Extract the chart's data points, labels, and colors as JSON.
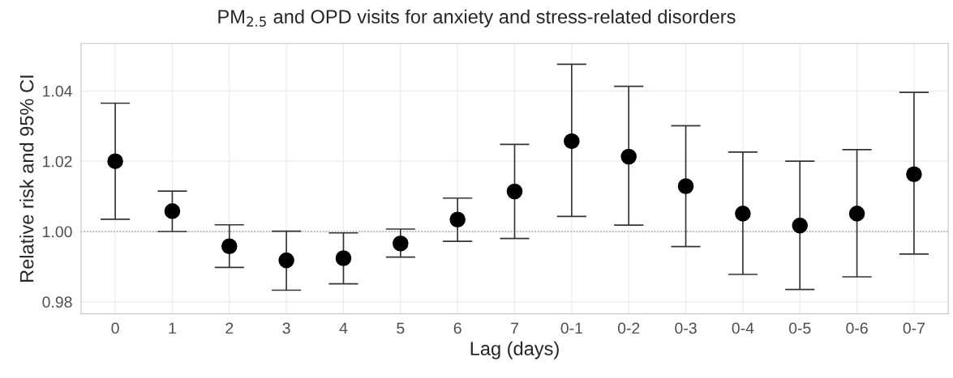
{
  "chart_data": {
    "type": "scatter",
    "title": "PM$_{2.5}$ and OPD visits for anxiety and stress-related disorders",
    "xlabel": "Lag (days)",
    "ylabel": "Relative risk and 95% CI",
    "categories": [
      "0",
      "1",
      "2",
      "3",
      "4",
      "5",
      "6",
      "7",
      "0-1",
      "0-2",
      "0-3",
      "0-4",
      "0-5",
      "0-6",
      "0-7"
    ],
    "series": [
      {
        "color": "#000000",
        "values": [
          1.02,
          1.0058,
          0.9958,
          0.9918,
          0.9924,
          0.9966,
          1.0034,
          1.0114,
          1.0257,
          1.0213,
          1.0129,
          1.0051,
          1.0017,
          1.0051,
          1.0163
        ],
        "errors": [
          [
            1.0035,
            1.0365
          ],
          [
            1.0,
            1.0115
          ],
          [
            0.9898,
            1.0019
          ],
          [
            0.9833,
            1.0001
          ],
          [
            0.9851,
            0.9996
          ],
          [
            0.9927,
            1.0007
          ],
          [
            0.9972,
            1.0095
          ],
          [
            0.998,
            1.0248
          ],
          [
            1.0043,
            1.0476
          ],
          [
            1.0018,
            1.0413
          ],
          [
            0.9957,
            1.0301
          ],
          [
            0.9878,
            1.0226
          ],
          [
            0.9835,
            1.02
          ],
          [
            0.9871,
            1.0233
          ],
          [
            0.9936,
            1.0396
          ]
        ]
      }
    ],
    "ylim": [
      0.9766,
      1.0535
    ],
    "yticks": [
      {
        "value": 0.98,
        "label": "0.98"
      },
      {
        "value": 1.0,
        "label": "1.00"
      },
      {
        "value": 1.02,
        "label": "1.02"
      },
      {
        "value": 1.04,
        "label": "1.04"
      }
    ],
    "grid": true,
    "marker": "circle",
    "ref_lines": [
      {
        "axis": "y",
        "value": 1.0,
        "color": "#999999",
        "line_style": "dotted"
      }
    ]
  }
}
